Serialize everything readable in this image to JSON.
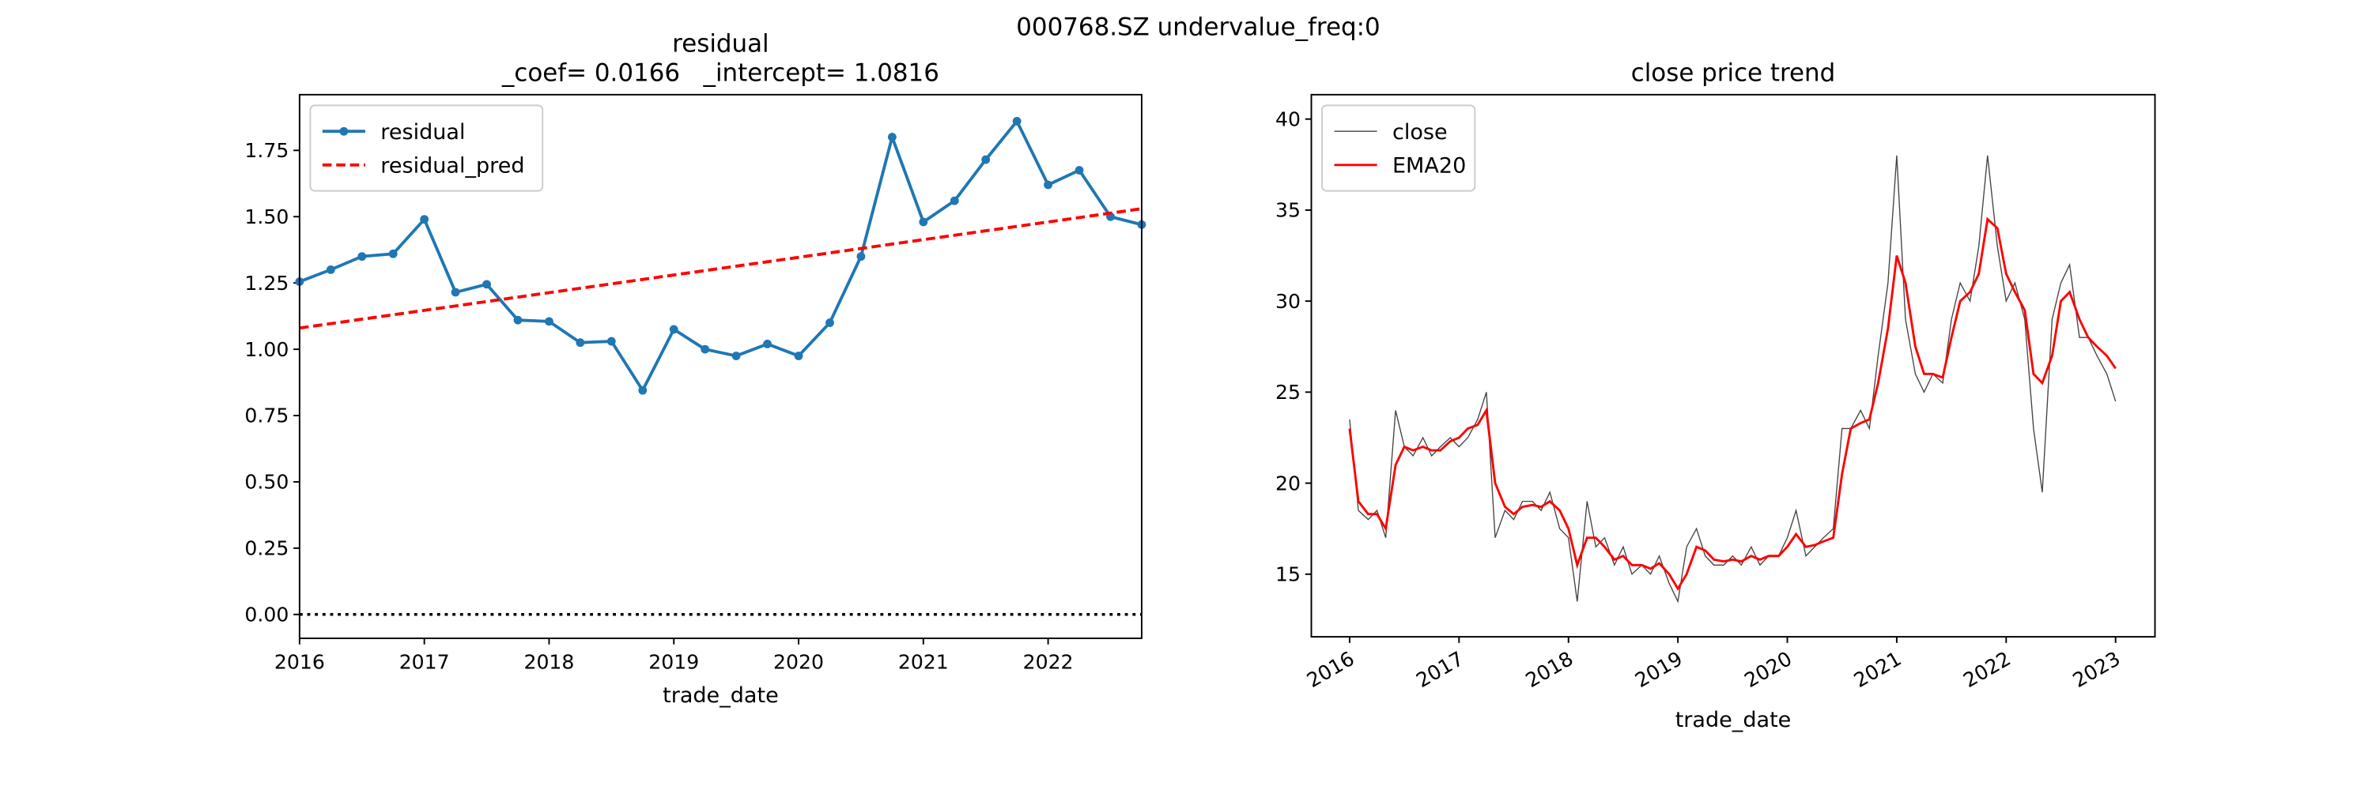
{
  "suptitle": "000768.SZ undervalue_freq:0",
  "chart_data": [
    {
      "type": "line",
      "title": "residual",
      "subtitle": "_coef= 0.0166   _intercept= 1.0816",
      "xlabel": "trade_date",
      "xlim": [
        2016,
        2022.75
      ],
      "xticks": [
        2016,
        2017,
        2018,
        2019,
        2020,
        2021,
        2022
      ],
      "ylim": [
        -0.09,
        1.96
      ],
      "yticks": [
        {
          "value": 0,
          "label": "0.00"
        },
        {
          "value": 0.25,
          "label": "0.25"
        },
        {
          "value": 0.5,
          "label": "0.50"
        },
        {
          "value": 0.75,
          "label": "0.75"
        },
        {
          "value": 1,
          "label": "1.00"
        },
        {
          "value": 1.25,
          "label": "1.25"
        },
        {
          "value": 1.5,
          "label": "1.50"
        },
        {
          "value": 1.75,
          "label": "1.75"
        }
      ],
      "hline": 0,
      "legend": "upper left",
      "xtick_rotation": 0,
      "series": [
        {
          "name": "residual",
          "color": "#1f77b4",
          "marker": true,
          "dash": "solid",
          "width": 2,
          "x": [
            2016,
            2016.25,
            2016.5,
            2016.75,
            2017,
            2017.25,
            2017.5,
            2017.75,
            2018,
            2018.25,
            2018.5,
            2018.75,
            2019,
            2019.25,
            2019.5,
            2019.75,
            2020,
            2020.25,
            2020.5,
            2020.75,
            2021,
            2021.25,
            2021.5,
            2021.75,
            2022,
            2022.25,
            2022.5,
            2022.75
          ],
          "values": [
            1.255,
            1.3,
            1.35,
            1.36,
            1.49,
            1.215,
            1.245,
            1.11,
            1.105,
            1.025,
            1.03,
            0.845,
            1.075,
            1.0,
            0.975,
            1.02,
            0.975,
            1.1,
            1.35,
            1.8,
            1.48,
            1.56,
            1.715,
            1.86,
            1.62,
            1.675,
            1.5,
            1.47
          ]
        },
        {
          "name": "residual_pred",
          "color": "#ff0000",
          "marker": false,
          "dash": "dashed",
          "width": 2,
          "x": [
            2016,
            2022.75
          ],
          "values": [
            1.08,
            1.53
          ]
        }
      ]
    },
    {
      "type": "line",
      "title": "close price trend",
      "xlabel": "trade_date",
      "xlim": [
        2015.65,
        2023.36
      ],
      "xticks": [
        2016,
        2017,
        2018,
        2019,
        2020,
        2021,
        2022,
        2023
      ],
      "ylim": [
        11.56,
        41.34
      ],
      "yticks": [
        15,
        20,
        25,
        30,
        35,
        40
      ],
      "legend": "upper left",
      "xtick_rotation": 30,
      "series": [
        {
          "name": "close",
          "color": "#444444",
          "marker": false,
          "dash": "solid",
          "width": 0.7,
          "x": [
            2016,
            2016.08,
            2016.17,
            2016.25,
            2016.33,
            2016.42,
            2016.5,
            2016.58,
            2016.67,
            2016.75,
            2016.83,
            2016.92,
            2017,
            2017.08,
            2017.17,
            2017.25,
            2017.33,
            2017.42,
            2017.5,
            2017.58,
            2017.67,
            2017.75,
            2017.83,
            2017.92,
            2018,
            2018.08,
            2018.17,
            2018.25,
            2018.33,
            2018.42,
            2018.5,
            2018.58,
            2018.67,
            2018.75,
            2018.83,
            2018.92,
            2019,
            2019.08,
            2019.17,
            2019.25,
            2019.33,
            2019.42,
            2019.5,
            2019.58,
            2019.67,
            2019.75,
            2019.83,
            2019.92,
            2020,
            2020.08,
            2020.17,
            2020.25,
            2020.33,
            2020.42,
            2020.5,
            2020.58,
            2020.67,
            2020.75,
            2020.83,
            2020.92,
            2021,
            2021.08,
            2021.17,
            2021.25,
            2021.33,
            2021.42,
            2021.5,
            2021.58,
            2021.67,
            2021.75,
            2021.83,
            2021.92,
            2022,
            2022.08,
            2022.17,
            2022.25,
            2022.33,
            2022.42,
            2022.5,
            2022.58,
            2022.67,
            2022.75,
            2022.83,
            2022.92,
            2023
          ],
          "values": [
            23.5,
            18.5,
            18,
            18.5,
            17,
            24,
            22,
            21.5,
            22.5,
            21.5,
            22,
            22.5,
            22,
            22.5,
            23.5,
            25,
            17,
            18.5,
            18,
            19,
            19,
            18.5,
            19.5,
            17.5,
            17,
            13.5,
            19,
            16.5,
            17,
            15.5,
            16.5,
            15,
            15.5,
            15,
            16,
            14.5,
            13.5,
            16.5,
            17.5,
            16,
            15.5,
            15.5,
            16,
            15.5,
            16.5,
            15.5,
            16,
            16,
            17,
            18.5,
            16,
            16.5,
            17,
            17.5,
            23,
            23,
            24,
            23,
            27,
            31,
            38,
            29,
            26,
            25,
            26,
            25.5,
            29,
            31,
            30,
            33,
            38,
            33,
            30,
            31,
            29,
            23,
            19.5,
            29,
            31,
            32,
            28,
            28,
            27,
            26,
            24.5
          ]
        },
        {
          "name": "EMA20",
          "color": "#ff0000",
          "marker": false,
          "dash": "solid",
          "width": 1.5,
          "x": [
            2016,
            2016.08,
            2016.17,
            2016.25,
            2016.33,
            2016.42,
            2016.5,
            2016.58,
            2016.67,
            2016.75,
            2016.83,
            2016.92,
            2017,
            2017.08,
            2017.17,
            2017.25,
            2017.33,
            2017.42,
            2017.5,
            2017.58,
            2017.67,
            2017.75,
            2017.83,
            2017.92,
            2018,
            2018.08,
            2018.17,
            2018.25,
            2018.33,
            2018.42,
            2018.5,
            2018.58,
            2018.67,
            2018.75,
            2018.83,
            2018.92,
            2019,
            2019.08,
            2019.17,
            2019.25,
            2019.33,
            2019.42,
            2019.5,
            2019.58,
            2019.67,
            2019.75,
            2019.83,
            2019.92,
            2020,
            2020.08,
            2020.17,
            2020.25,
            2020.33,
            2020.42,
            2020.5,
            2020.58,
            2020.67,
            2020.75,
            2020.83,
            2020.92,
            2021,
            2021.08,
            2021.17,
            2021.25,
            2021.33,
            2021.42,
            2021.5,
            2021.58,
            2021.67,
            2021.75,
            2021.83,
            2021.92,
            2022,
            2022.08,
            2022.17,
            2022.25,
            2022.33,
            2022.42,
            2022.5,
            2022.58,
            2022.67,
            2022.75,
            2022.83,
            2022.92,
            2023
          ],
          "values": [
            23,
            19,
            18.3,
            18.3,
            17.5,
            21,
            22,
            21.8,
            22,
            21.8,
            21.8,
            22.3,
            22.5,
            23,
            23.2,
            24,
            20,
            18.7,
            18.3,
            18.7,
            18.8,
            18.7,
            19,
            18.5,
            17.5,
            15.5,
            17,
            17,
            16.5,
            15.8,
            16,
            15.5,
            15.5,
            15.3,
            15.6,
            15,
            14.2,
            15,
            16.5,
            16.3,
            15.8,
            15.7,
            15.8,
            15.7,
            16,
            15.8,
            16,
            16,
            16.5,
            17.2,
            16.5,
            16.6,
            16.8,
            17,
            20.5,
            23,
            23.3,
            23.5,
            25.5,
            28.5,
            32.5,
            31,
            27.5,
            26,
            26,
            25.8,
            28,
            30,
            30.5,
            31.5,
            34.5,
            34,
            31.5,
            30.5,
            29.5,
            26,
            25.5,
            27,
            30,
            30.5,
            29,
            28,
            27.5,
            27,
            26.3
          ]
        }
      ]
    }
  ]
}
